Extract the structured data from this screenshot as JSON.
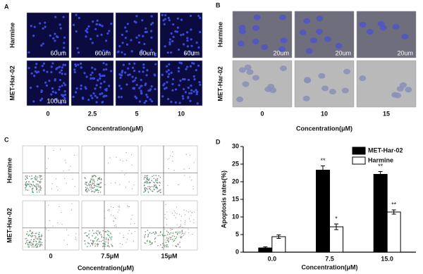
{
  "panels": {
    "A": {
      "label": "A",
      "rows": [
        "Harmine",
        "MET-Har-02"
      ],
      "columns": [
        "0",
        "2.5",
        "5",
        "10"
      ],
      "scale_bars": [
        "60um",
        "60um",
        "60um",
        "60um",
        "100um"
      ],
      "xlabel": "Concentration(μM)"
    },
    "B": {
      "label": "B",
      "rows": [
        "Harmine",
        "MET-Har-02"
      ],
      "columns": [
        "0",
        "10",
        "15"
      ],
      "scale_bars": [
        "20um",
        "20um",
        "20um"
      ],
      "xlabel": "Concentration(μM)"
    },
    "C": {
      "label": "C",
      "rows": [
        "Harmine",
        "MET-Har-02"
      ],
      "columns": [
        "0",
        "7.5μM",
        "15μM"
      ],
      "xlabel": "Concentration(μM)"
    }
  },
  "chart_data": {
    "type": "bar",
    "label": "D",
    "categories": [
      "0.0",
      "7.5",
      "15.0"
    ],
    "series": [
      {
        "name": "MET-Har-02",
        "color": "#000000",
        "values": [
          1.2,
          23.3,
          22.1
        ],
        "errors": [
          0.3,
          1.2,
          0.8
        ],
        "annotations": [
          null,
          "**",
          "**"
        ]
      },
      {
        "name": "Harmine",
        "color": "#ffffff",
        "values": [
          4.4,
          7.2,
          11.4
        ],
        "errors": [
          0.5,
          0.8,
          0.6
        ],
        "annotations": [
          null,
          "*",
          "**"
        ]
      }
    ],
    "ylabel": "Apoptosis rates(%)",
    "xlabel": "Concentration(μM)",
    "ylim": [
      0,
      30
    ],
    "yticks": [
      0,
      5,
      10,
      15,
      20,
      25,
      30
    ],
    "legend": "top-right"
  }
}
